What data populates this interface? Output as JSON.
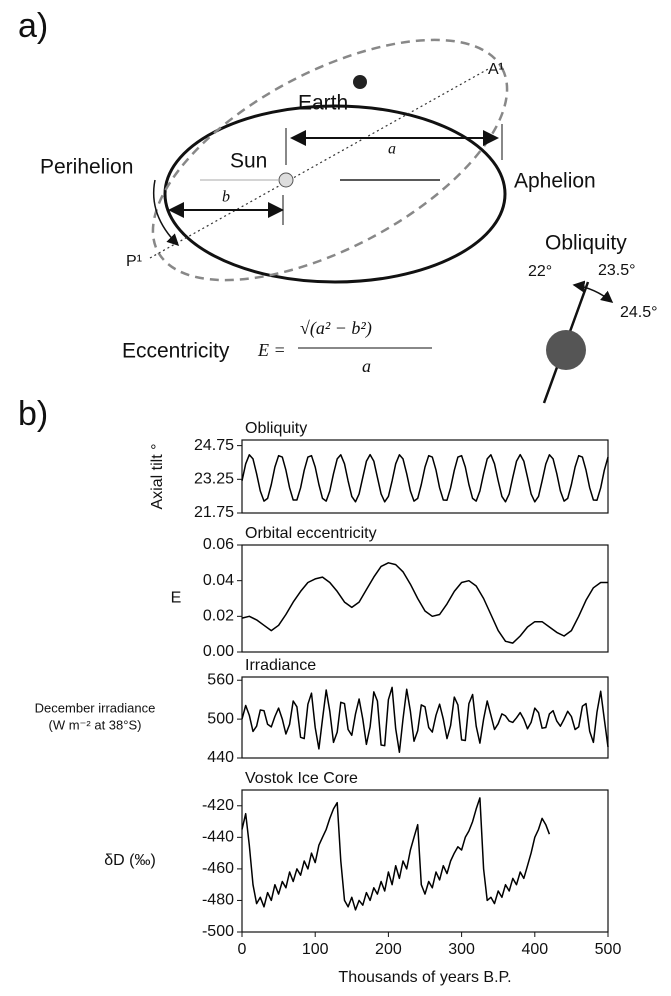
{
  "diagram": {
    "panel_a": "a)",
    "panel_b": "b)",
    "earth": "Earth",
    "sun": "Sun",
    "a_label": "a",
    "b_label": "b",
    "aphelion": "Aphelion",
    "perihelion": "Perihelion",
    "a1": "A¹",
    "p1": "P¹",
    "obliquity": "Obliquity",
    "tilt_low": "22°",
    "tilt_mid": "23.5°",
    "tilt_high": "24.5°",
    "eccentricity": "Eccentricity",
    "formula_lhs": "E =",
    "formula_num": "√(a² − b²)",
    "formula_den": "a"
  },
  "chart_data": [
    {
      "type": "line",
      "title": "Obliquity",
      "ylabel": "Axial tilt °",
      "color": "#000000",
      "xlim": [
        0,
        500
      ],
      "ylim": [
        21.75,
        25
      ],
      "yticks": [
        21.75,
        23.25,
        24.75
      ],
      "x": [
        0,
        5,
        10,
        15,
        20,
        25,
        30,
        35,
        40,
        45,
        50,
        55,
        60,
        65,
        70,
        75,
        80,
        85,
        90,
        95,
        100,
        105,
        110,
        115,
        120,
        125,
        130,
        135,
        140,
        145,
        150,
        155,
        160,
        165,
        170,
        175,
        180,
        185,
        190,
        195,
        200,
        205,
        210,
        215,
        220,
        225,
        230,
        235,
        240,
        245,
        250,
        255,
        260,
        265,
        270,
        275,
        280,
        285,
        290,
        295,
        300,
        305,
        310,
        315,
        320,
        325,
        330,
        335,
        340,
        345,
        350,
        355,
        360,
        365,
        370,
        375,
        380,
        385,
        390,
        395,
        400,
        405,
        410,
        415,
        420,
        425,
        430,
        435,
        440,
        445,
        450,
        455,
        460,
        465,
        470,
        475,
        480,
        485,
        490,
        495,
        500
      ],
      "values": [
        23.18,
        23.94,
        24.34,
        24.16,
        23.5,
        22.73,
        22.28,
        22.4,
        23.02,
        23.8,
        24.3,
        24.24,
        23.66,
        22.87,
        22.33,
        22.33,
        22.87,
        23.65,
        24.24,
        24.3,
        23.8,
        23.02,
        22.4,
        22.28,
        22.73,
        23.5,
        24.16,
        24.34,
        23.94,
        23.18,
        22.49,
        22.25,
        22.6,
        23.34,
        24.05,
        24.35,
        24.06,
        23.34,
        22.6,
        22.25,
        22.49,
        23.18,
        23.94,
        24.34,
        24.16,
        23.5,
        22.73,
        22.28,
        22.4,
        23.02,
        23.8,
        24.3,
        24.24,
        23.66,
        22.87,
        22.33,
        22.32,
        22.87,
        23.65,
        24.24,
        24.3,
        23.8,
        23.02,
        22.4,
        22.28,
        22.73,
        23.5,
        24.16,
        24.34,
        23.94,
        23.18,
        22.49,
        22.25,
        22.6,
        23.34,
        24.05,
        24.35,
        24.06,
        23.34,
        22.6,
        22.25,
        22.49,
        23.18,
        23.93,
        24.34,
        24.16,
        23.5,
        22.73,
        22.28,
        22.4,
        23.02,
        23.8,
        24.3,
        24.24,
        23.66,
        22.87,
        22.33,
        22.32,
        22.87,
        23.65,
        24.24
      ]
    },
    {
      "type": "line",
      "title": "Orbital eccentricity",
      "ylabel": "E",
      "color": "#000000",
      "xlim": [
        0,
        500
      ],
      "ylim": [
        0,
        0.06
      ],
      "yticks": [
        {
          "value": 0,
          "label": "0.00"
        },
        0.02,
        0.04,
        0.06
      ],
      "x": [
        0,
        10,
        20,
        30,
        40,
        50,
        60,
        70,
        80,
        90,
        100,
        110,
        120,
        130,
        140,
        150,
        160,
        170,
        180,
        190,
        200,
        210,
        220,
        230,
        240,
        250,
        260,
        270,
        280,
        290,
        300,
        310,
        320,
        330,
        340,
        350,
        360,
        370,
        380,
        390,
        400,
        410,
        420,
        430,
        440,
        450,
        460,
        470,
        480,
        490,
        500
      ],
      "values": [
        0.019,
        0.02,
        0.018,
        0.015,
        0.012,
        0.015,
        0.021,
        0.028,
        0.034,
        0.039,
        0.041,
        0.042,
        0.039,
        0.034,
        0.028,
        0.025,
        0.028,
        0.035,
        0.042,
        0.048,
        0.05,
        0.049,
        0.045,
        0.038,
        0.03,
        0.023,
        0.02,
        0.021,
        0.027,
        0.034,
        0.039,
        0.04,
        0.037,
        0.03,
        0.021,
        0.012,
        0.006,
        0.005,
        0.009,
        0.014,
        0.017,
        0.017,
        0.014,
        0.011,
        0.009,
        0.012,
        0.02,
        0.029,
        0.036,
        0.039,
        0.039
      ]
    },
    {
      "type": "line",
      "title": "Irradiance",
      "ylabel": [
        "December irradiance",
        "(W m⁻² at 38°S)"
      ],
      "color": "#000000",
      "xlim": [
        0,
        500
      ],
      "ylim": [
        440,
        565
      ],
      "yticks": [
        440,
        500,
        560
      ],
      "x": [
        0,
        5,
        10,
        15,
        20,
        25,
        30,
        35,
        40,
        45,
        50,
        55,
        60,
        65,
        70,
        75,
        80,
        85,
        90,
        95,
        100,
        105,
        110,
        115,
        120,
        125,
        130,
        135,
        140,
        145,
        150,
        155,
        160,
        165,
        170,
        175,
        180,
        185,
        190,
        195,
        200,
        205,
        210,
        215,
        220,
        225,
        230,
        235,
        240,
        245,
        250,
        255,
        260,
        265,
        270,
        275,
        280,
        285,
        290,
        295,
        300,
        305,
        310,
        315,
        320,
        325,
        330,
        335,
        340,
        345,
        350,
        355,
        360,
        365,
        370,
        375,
        380,
        385,
        390,
        395,
        400,
        405,
        410,
        415,
        420,
        425,
        430,
        435,
        440,
        445,
        450,
        455,
        460,
        465,
        470,
        475,
        480,
        485,
        490,
        495,
        500
      ],
      "values": [
        500,
        521,
        506,
        481,
        489,
        514,
        513,
        492,
        488,
        504,
        517,
        500,
        477,
        492,
        528,
        519,
        472,
        470,
        523,
        540,
        487,
        454,
        500,
        545,
        512,
        464,
        480,
        526,
        524,
        484,
        475,
        508,
        531,
        500,
        461,
        488,
        542,
        528,
        460,
        459,
        530,
        549,
        485,
        449,
        500,
        546,
        512,
        466,
        482,
        522,
        519,
        487,
        480,
        506,
        523,
        500,
        470,
        490,
        534,
        522,
        468,
        467,
        524,
        538,
        489,
        463,
        500,
        528,
        506,
        484,
        493,
        508,
        505,
        497,
        495,
        502,
        510,
        500,
        485,
        495,
        517,
        510,
        486,
        487,
        508,
        513,
        497,
        489,
        500,
        512,
        504,
        484,
        488,
        520,
        524,
        481,
        464,
        511,
        543,
        500,
        457
      ]
    },
    {
      "type": "line",
      "title": "Vostok Ice Core",
      "ylabel": "δD (‰)",
      "xlabel": "Thousands of years B.P.",
      "color": "#000000",
      "xlim": [
        0,
        500
      ],
      "ylim": [
        -500,
        -410
      ],
      "yticks": [
        -500,
        -480,
        -460,
        -440,
        -420
      ],
      "xticks": [
        0,
        100,
        200,
        300,
        400,
        500
      ],
      "x": [
        0,
        5,
        10,
        15,
        20,
        25,
        30,
        35,
        40,
        45,
        50,
        55,
        60,
        65,
        70,
        75,
        80,
        85,
        90,
        95,
        100,
        105,
        110,
        115,
        120,
        125,
        130,
        135,
        140,
        145,
        150,
        155,
        160,
        165,
        170,
        175,
        180,
        185,
        190,
        195,
        200,
        205,
        210,
        215,
        220,
        225,
        230,
        235,
        240,
        245,
        250,
        255,
        260,
        265,
        270,
        275,
        280,
        285,
        290,
        295,
        300,
        305,
        310,
        315,
        320,
        325,
        330,
        335,
        340,
        345,
        350,
        355,
        360,
        365,
        370,
        375,
        380,
        385,
        390,
        395,
        400,
        405,
        410,
        415,
        420
      ],
      "values": [
        -435,
        -425,
        -445,
        -470,
        -482,
        -478,
        -484,
        -475,
        -480,
        -470,
        -476,
        -468,
        -472,
        -462,
        -468,
        -460,
        -464,
        -455,
        -460,
        -450,
        -456,
        -445,
        -440,
        -435,
        -428,
        -422,
        -418,
        -455,
        -480,
        -484,
        -478,
        -486,
        -480,
        -483,
        -475,
        -480,
        -472,
        -476,
        -468,
        -474,
        -462,
        -470,
        -458,
        -466,
        -455,
        -460,
        -448,
        -440,
        -432,
        -470,
        -476,
        -468,
        -472,
        -462,
        -467,
        -458,
        -463,
        -455,
        -450,
        -446,
        -448,
        -440,
        -436,
        -430,
        -422,
        -415,
        -460,
        -480,
        -478,
        -482,
        -474,
        -478,
        -470,
        -474,
        -466,
        -470,
        -462,
        -466,
        -458,
        -450,
        -440,
        -435,
        -428,
        -432,
        -438
      ]
    }
  ]
}
